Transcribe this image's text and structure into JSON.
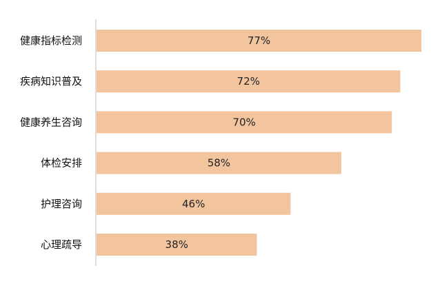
{
  "chart_data": {
    "type": "bar",
    "orientation": "horizontal",
    "categories": [
      "健康指标检测",
      "疾病知识普及",
      "健康养生咨询",
      "体检安排",
      "护理咨询",
      "心理疏导"
    ],
    "values": [
      77,
      72,
      70,
      58,
      46,
      38
    ],
    "value_labels": [
      "77%",
      "72%",
      "70%",
      "58%",
      "46%",
      "38%"
    ],
    "unit": "%",
    "xlim": [
      0,
      77
    ],
    "grid": false,
    "legend": "none"
  },
  "colors": {
    "bar": "#f2c59f",
    "axis": "#dcdcdc",
    "text": "#111111"
  }
}
